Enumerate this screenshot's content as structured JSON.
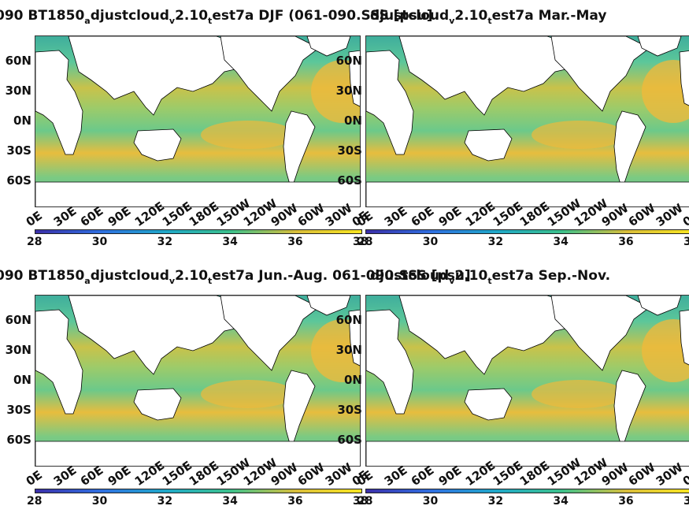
{
  "panels": [
    {
      "title_parts": [
        "090 BT1850",
        "a",
        "djustcloud",
        "v",
        "2.10",
        "t",
        "est7a DJF..."
      ],
      "season": "Dec.-Feb."
    },
    {
      "title_parts": [
        "",
        "",
        "",
        "",
        "",
        "",
        ""
      ],
      "season": "Mar.-May"
    },
    {
      "title_parts": [
        "090 BT1850",
        "a",
        "djustcloud",
        "v",
        "2.10",
        "t",
        "est7a Jun.-Aug."
      ],
      "season": "Jun.-Aug."
    },
    {
      "title_parts": [
        "",
        "",
        "",
        "",
        "",
        "",
        ""
      ],
      "season": "Sep.-Nov."
    }
  ],
  "top_title_left": "090 BT1850",
  "top_title_overlap": "YRD061-090.SSS [psu]",
  "titles": {
    "t1a": "090 BT1850",
    "t1b": "djustcloud",
    "t1c": "2.10",
    "t1d": "est7a DJF (061-090.SSS [psu]",
    "t2": "djustcloud",
    "t2b": "2.10",
    "t2c": "est7a Mar.-May",
    "t3a": "090 BT1850",
    "t3b": "djustcloud",
    "t3c": "2.10",
    "t3d": "est7a Jun.-Aug. 061-090.SSS [psu]",
    "t4b": "djustcloud",
    "t4c": "2.10",
    "t4d": "est7a Sep.-Nov.",
    "sub_a": "a",
    "sub_v": "v",
    "sub_t": "t"
  },
  "y_labels": [
    "60N",
    "30N",
    "0N",
    "30S",
    "60S"
  ],
  "x_labels": [
    "0E",
    "30E",
    "60E",
    "90E",
    "120E",
    "150E",
    "180E",
    "150W",
    "120W",
    "90W",
    "60W",
    "30W",
    "0E"
  ],
  "colorbar_ticks": [
    "28",
    "30",
    "32",
    "34",
    "36",
    "38"
  ],
  "colorbar_range": [
    28,
    38
  ],
  "colors": {
    "low": "#3b2fa8",
    "mid": "#20b2aa",
    "high": "#f8e621",
    "ocean_main": "#5cc79a",
    "subtropic": "#f0b93a",
    "land": "#ffffff"
  }
}
